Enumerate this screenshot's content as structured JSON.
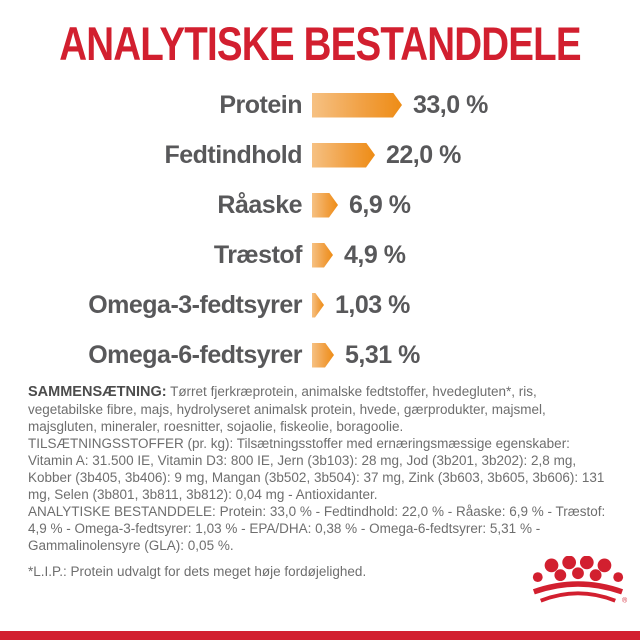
{
  "title": "ANALYTISKE BESTANDDELE",
  "colors": {
    "brand_red": "#d21f2f",
    "arrow_orange_light": "#f6c183",
    "arrow_orange_dark": "#ee8c15",
    "label_gray": "#58585a",
    "body_text_gray": "#6e6e6e"
  },
  "chart_data": {
    "type": "bar",
    "title": "ANALYTISKE BESTANDDELE",
    "orientation": "horizontal",
    "categories": [
      "Protein",
      "Fedtindhold",
      "Råaske",
      "Træstof",
      "Omega-3-fedtsyrer",
      "Omega-6-fedtsyrer"
    ],
    "values": [
      33.0,
      22.0,
      6.9,
      4.9,
      1.03,
      5.31
    ],
    "value_labels": [
      "33,0 %",
      "22,0 %",
      "6,9 %",
      "4,9 %",
      "1,03 %",
      "5,31 %"
    ],
    "unit": "%",
    "xlabel": "",
    "ylabel": "",
    "grid": false,
    "legend": false,
    "bar_style": "orange gradient arrow pointing right, length proportional to value"
  },
  "sections": {
    "sammensaetning": {
      "label": "SAMMENSÆTNING:",
      "text": " Tørret fjerkræprotein, animalske fedtstoffer, hvedegluten*, ris, vegetabilske fibre, majs, hydrolyseret animalsk protein, hvede, gærprodukter, majsmel, majsgluten, mineraler, roesnitter, sojaolie, fiskeolie, boragoolie."
    },
    "tilsaetningsstoffer": {
      "label": "TILSÆTNINGSSTOFFER (pr. kg):",
      "text": " Tilsætningsstoffer med ernæringsmæssige egenskaber: Vitamin A: 31.500 IE, Vitamin D3: 800 IE, Jern (3b103): 28 mg, Jod (3b201, 3b202): 2,8 mg, Kobber (3b405, 3b406): 9 mg, Mangan (3b502, 3b504): 37 mg, Zink (3b603, 3b605, 3b606): 131 mg, Selen (3b801, 3b811, 3b812): 0,04 mg - Antioxidanter."
    },
    "analytiske": {
      "label": "ANALYTISKE BESTANDDELE:",
      "text": " Protein: 33,0 % - Fedtindhold: 22,0 % - Råaske: 6,9 % - Træstof: 4,9 % - Omega-3-fedtsyrer: 1,03 % - EPA/DHA: 0,38 % - Omega-6-fedtsyrer: 5,31 % - Gammalinolensyre (GLA): 0,05 %."
    },
    "lip_note": "*L.I.P.: Protein udvalgt for dets meget høje fordøjelighed."
  },
  "footer": {
    "brand_mark": "royal-canin-crown",
    "registered_symbol": "®"
  }
}
